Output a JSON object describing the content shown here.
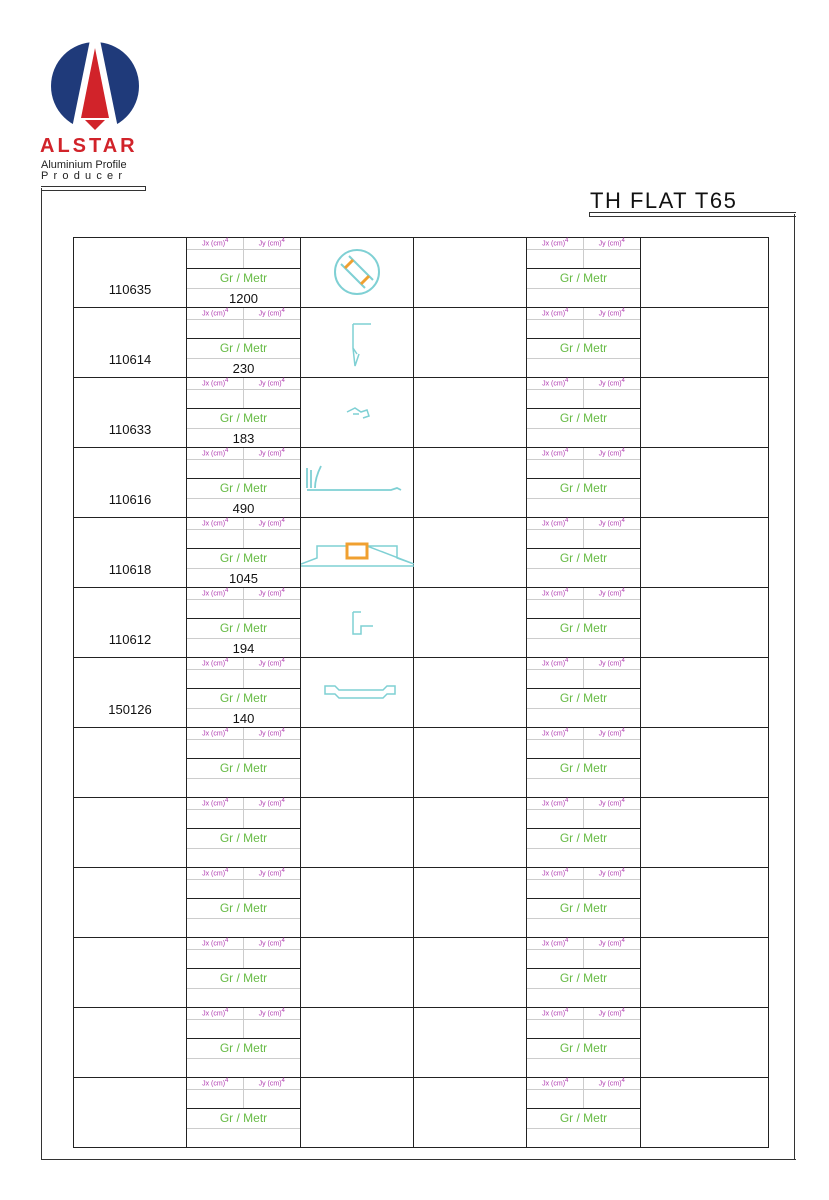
{
  "brand": {
    "name": "ALSTAR",
    "tagline1": "Aluminium Profile",
    "tagline2": "Producer"
  },
  "title": "TH FLAT T65",
  "labels": {
    "jx": "Jx (cm)",
    "jy": "Jy (cm)",
    "exp": "4",
    "gr": "Gr / Metr"
  },
  "colors": {
    "profile": "#7fd0d4",
    "insert": "#f0a030",
    "prop_label": "#b03cb0",
    "gr_label": "#66bb44",
    "brand": "#d1232a",
    "logo_blue": "#1f3a7a"
  },
  "rows": [
    {
      "code": "110635",
      "value": "1200",
      "profile": "round-profile"
    },
    {
      "code": "110614",
      "value": "230",
      "profile": "hook-profile"
    },
    {
      "code": "110633",
      "value": "183",
      "profile": "small-clip-profile"
    },
    {
      "code": "110616",
      "value": "490",
      "profile": "sash-profile"
    },
    {
      "code": "110618",
      "value": "1045",
      "profile": "frame-profile"
    },
    {
      "code": "110612",
      "value": "194",
      "profile": "angle-profile"
    },
    {
      "code": "150126",
      "value": "140",
      "profile": "flat-profile"
    },
    {
      "code": "",
      "value": "",
      "profile": ""
    },
    {
      "code": "",
      "value": "",
      "profile": ""
    },
    {
      "code": "",
      "value": "",
      "profile": ""
    },
    {
      "code": "",
      "value": "",
      "profile": ""
    },
    {
      "code": "",
      "value": "",
      "profile": ""
    },
    {
      "code": "",
      "value": "",
      "profile": ""
    }
  ]
}
